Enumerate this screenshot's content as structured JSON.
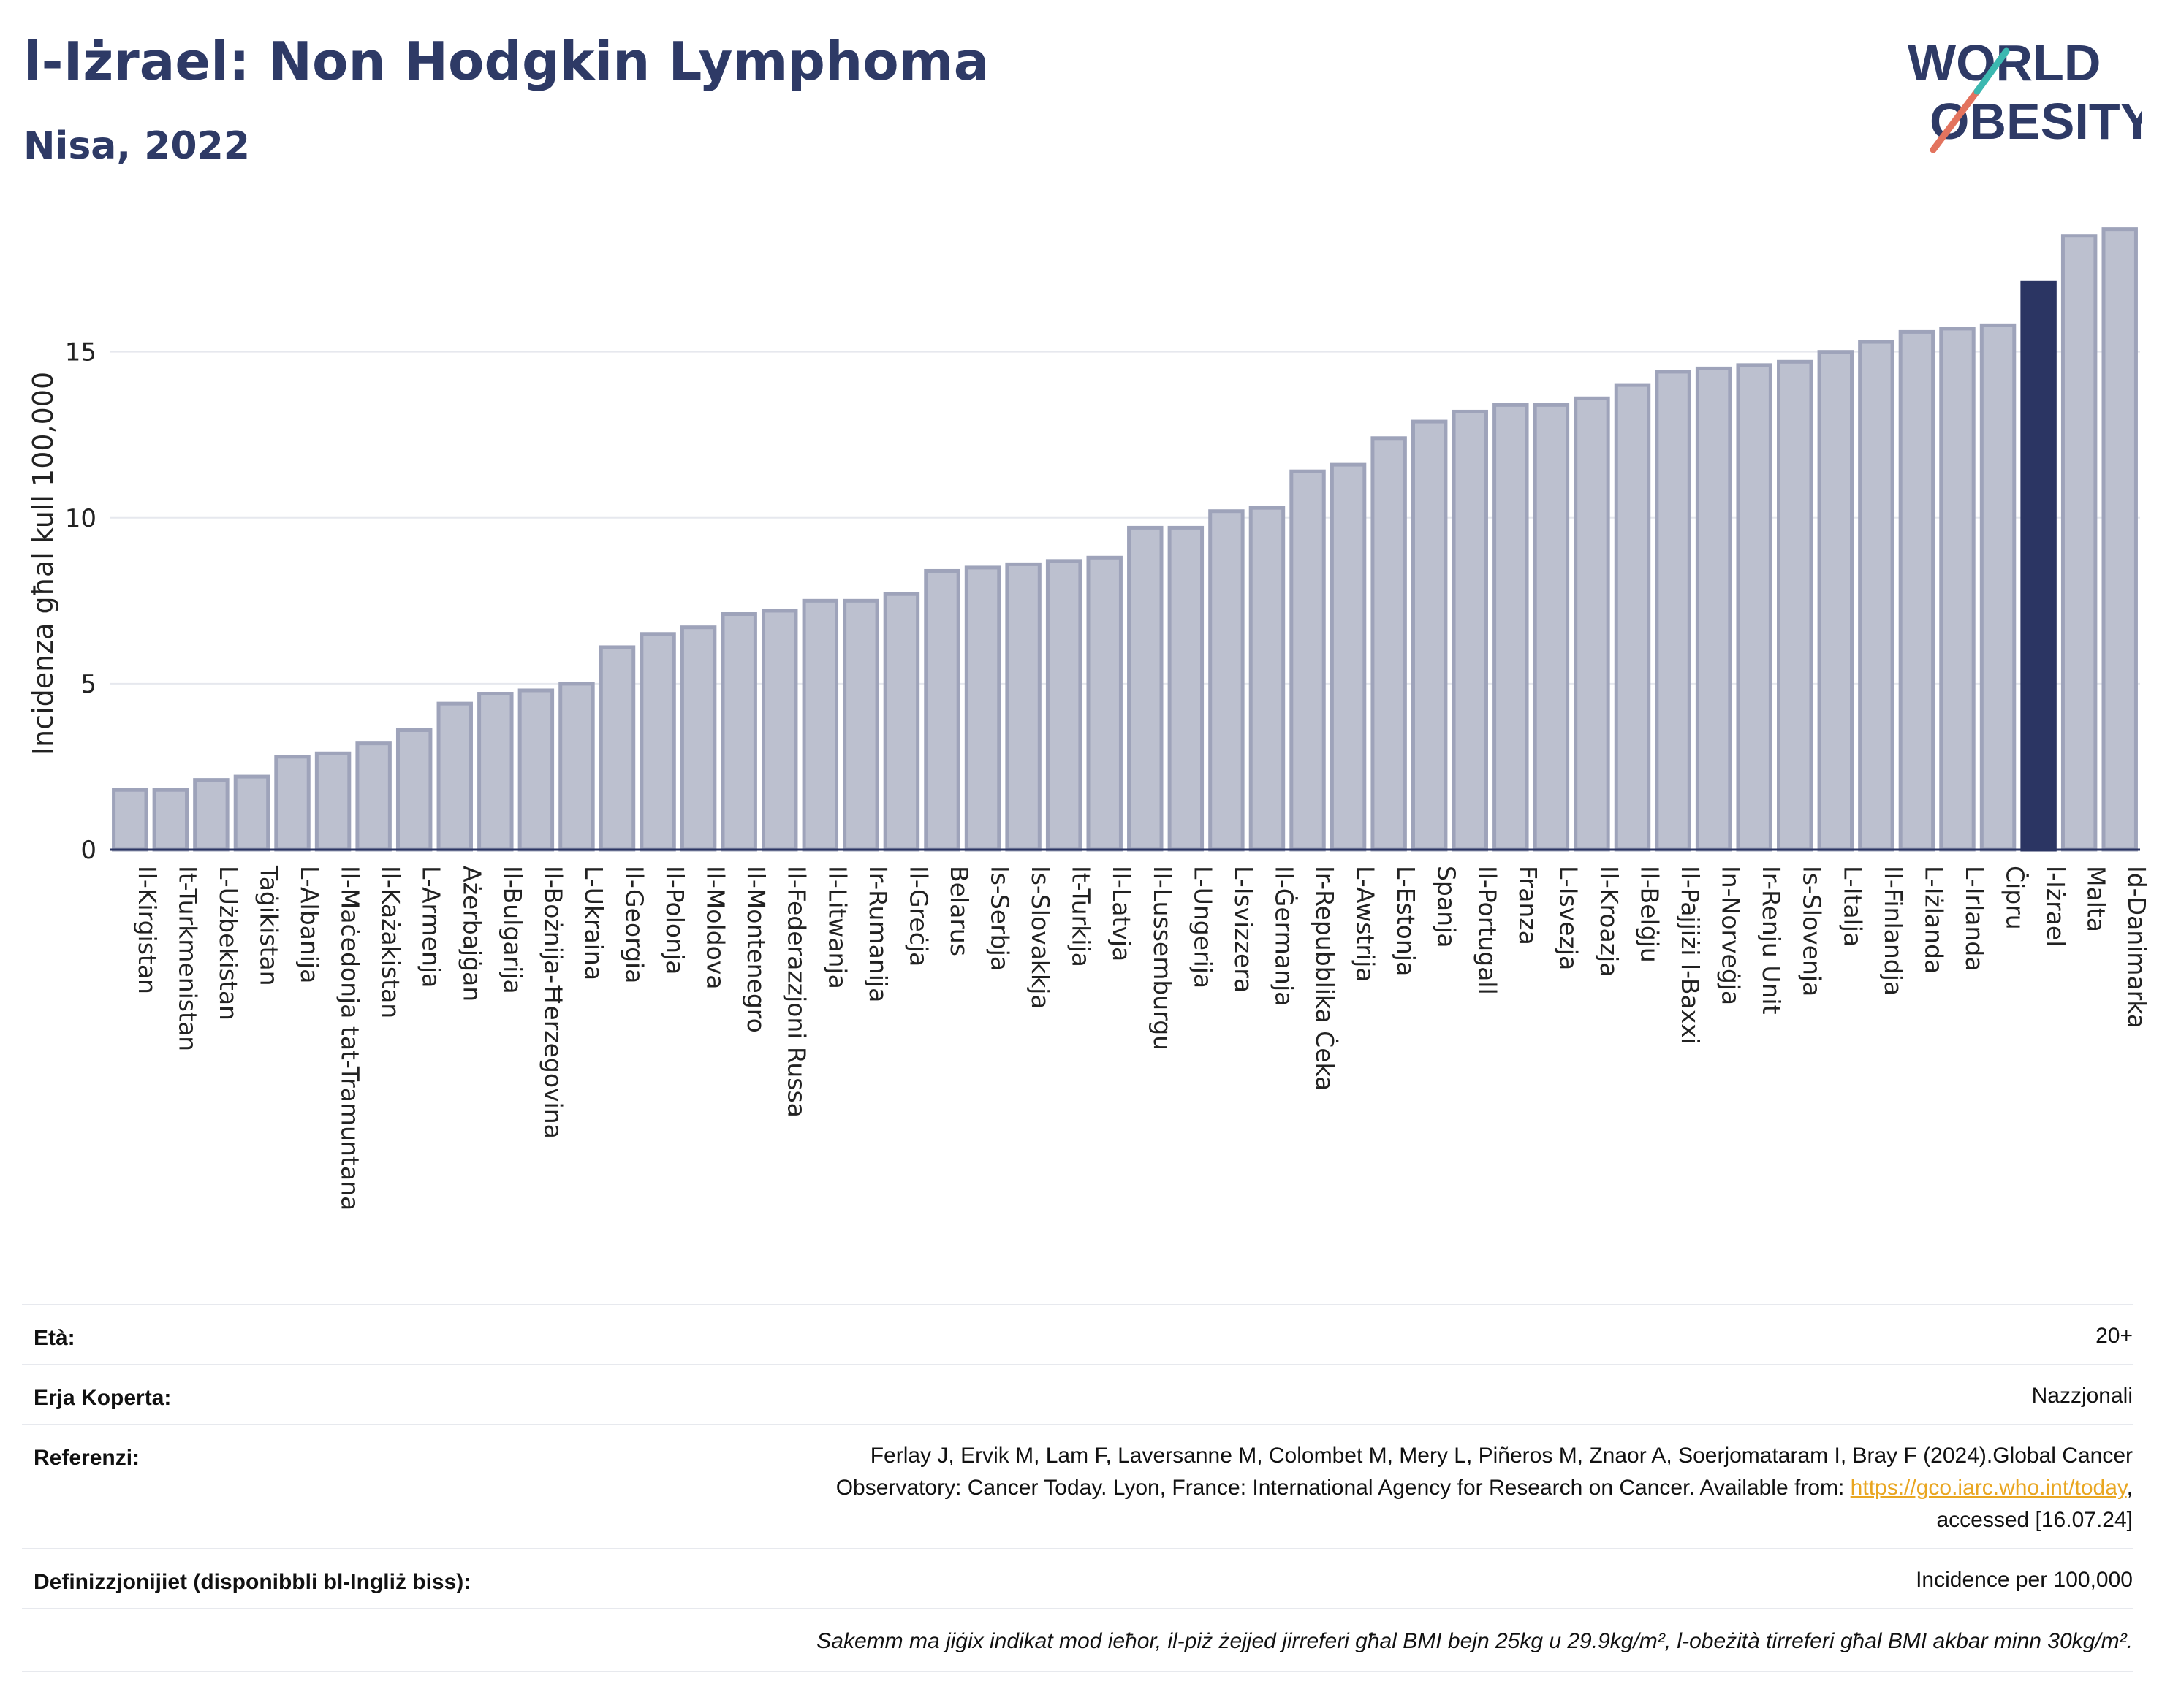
{
  "header": {
    "title": "l-Iżrael: Non Hodgkin Lymphoma",
    "subtitle": "Nisa, 2022",
    "logo_line1": "WORLD",
    "logo_line2": "OBESITY"
  },
  "chart_data": {
    "type": "bar",
    "ylabel": "Incidenza għal kull 100,000",
    "ylim": [
      0,
      19
    ],
    "yticks": [
      0,
      5,
      10,
      15
    ],
    "grid": true,
    "highlight": "l-Iżrael",
    "colors": {
      "bar": "#bcc0cf",
      "bar_edge": "#9ea3ba",
      "highlight": "#2b3563",
      "grid": "#e6e8ee",
      "axis": "#2b3563"
    },
    "categories": [
      "Il-Kirgistan",
      "It-Turkmenistan",
      "L-Użbekistan",
      "Taġikistan",
      "L-Albanija",
      "Il-Maċedonja tat-Tramuntana",
      "Il-Każakistan",
      "L-Armenja",
      "Ażerbajġan",
      "Il-Bulgarija",
      "Il-Bożnija-Ħerzegovina",
      "L-Ukraina",
      "Il-Georgia",
      "Il-Polonja",
      "Il-Moldova",
      "Il-Montenegro",
      "Il-Federazzjoni Russa",
      "Il-Litwanja",
      "Ir-Rumanija",
      "Il-Greċja",
      "Belarus",
      "Is-Serbja",
      "Is-Slovakkja",
      "It-Turkija",
      "Il-Latvja",
      "Il-Lussemburgu",
      "L-Ungerija",
      "L-Isvizzera",
      "Il-Ġermanja",
      "Ir-Repubblika Ċeka",
      "L-Awstrija",
      "L-Estonja",
      "Spanja",
      "Il-Portugall",
      "Franza",
      "L-Isvezja",
      "Il-Kroazja",
      "Il-Belġju",
      "Il-Pajjiżi l-Baxxi",
      "In-Norveġja",
      "Ir-Renju Unit",
      "Is-Slovenja",
      "L-Italja",
      "Il-Finlandja",
      "L-Iżlanda",
      "L-Irlanda",
      "Ċipru",
      "l-Iżrael",
      "Malta",
      "Id-Danimarka"
    ],
    "values": [
      1.8,
      1.8,
      2.1,
      2.2,
      2.8,
      2.9,
      3.2,
      3.6,
      4.4,
      4.7,
      4.8,
      5.0,
      6.1,
      6.5,
      6.7,
      7.1,
      7.2,
      7.5,
      7.5,
      7.7,
      8.4,
      8.5,
      8.6,
      8.7,
      8.8,
      9.7,
      9.7,
      10.2,
      10.3,
      11.4,
      11.6,
      12.4,
      12.9,
      13.2,
      13.4,
      13.4,
      13.6,
      14.0,
      14.4,
      14.5,
      14.6,
      14.7,
      15.0,
      15.3,
      15.6,
      15.7,
      15.8,
      17.1,
      18.5,
      18.7
    ]
  },
  "meta": {
    "age_label": "Età:",
    "age_value": "20+",
    "area_label": "Erja Koperta:",
    "area_value": "Nazzjonali",
    "ref_label": "Referenzi:",
    "ref_line1": "Ferlay J, Ervik M, Lam F, Laversanne M, Colombet M, Mery L, Piñeros M, Znaor A, Soerjomataram I, Bray F (2024).Global Cancer",
    "ref_line2": "Observatory: Cancer Today. Lyon, France: International Agency for Research on Cancer. Available from: ",
    "ref_link": "https://gco.iarc.who.int/today",
    "ref_line2_end": ",",
    "ref_line3": "accessed [16.07.24]",
    "def_label": "Definizzjonijiet (disponibbli bl-Ingliż biss):",
    "def_value": "Incidence per 100,000",
    "note": "Sakemm ma jiġix indikat mod ieħor, il-piż żejjed jirreferi għal BMI bejn 25kg u 29.9kg/m², l-obeżità tirreferi għal BMI akbar minn 30kg/m²."
  }
}
